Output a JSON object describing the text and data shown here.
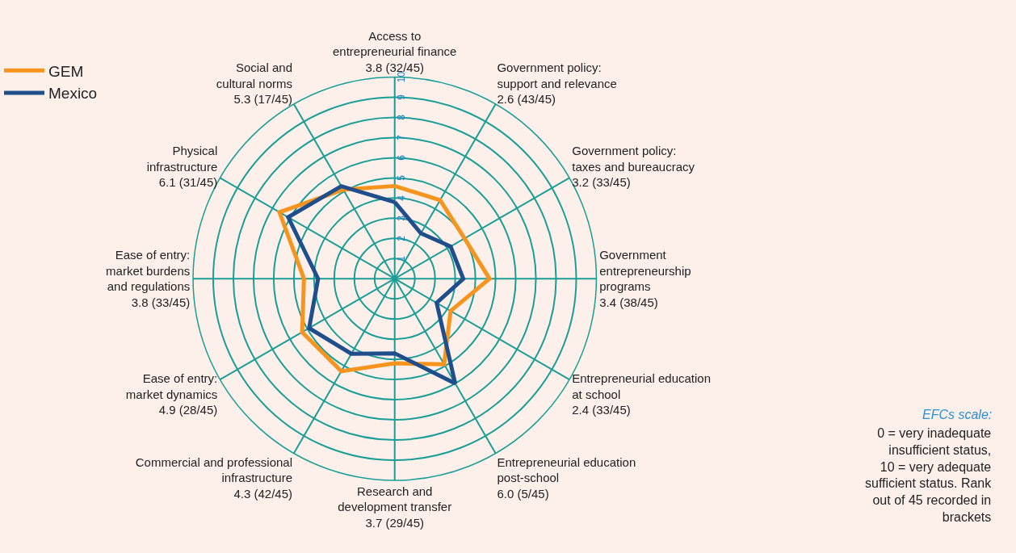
{
  "chart_data": {
    "type": "radar",
    "categories": [
      "Access to\nentrepreneurial finance\n3.8 (32/45)",
      "Government policy:\nsupport and relevance\n2.6 (43/45)",
      "Government policy:\ntaxes and bureaucracy\n3.2 (33/45)",
      "Government\nentrepreneurship\nprograms\n3.4 (38/45)",
      "Entrepreneurial education\nat school\n2.4 (33/45)",
      "Entrepreneurial education\npost-school\n6.0 (5/45)",
      "Research and\ndevelopment transfer\n3.7 (29/45)",
      "Commercial and professional\ninfrastructure\n4.3 (42/45)",
      "Ease of entry:\nmarket dynamics\n4.9 (28/45)",
      "Ease of entry:\nmarket burdens\nand regulations\n3.8 (33/45)",
      "Physical\ninfrastructure\n6.1 (31/45)",
      "Social and\ncultural norms\n5.3 (17/45)"
    ],
    "series": [
      {
        "name": "GEM",
        "color": "#f7941d",
        "values": [
          4.6,
          4.5,
          4.0,
          4.7,
          3.2,
          4.9,
          4.2,
          5.3,
          5.3,
          4.5,
          6.6,
          5.1
        ]
      },
      {
        "name": "Mexico",
        "color": "#1f4e8c",
        "values": [
          3.8,
          2.6,
          3.2,
          3.4,
          2.4,
          6.0,
          3.7,
          4.3,
          4.9,
          3.8,
          6.1,
          5.3
        ]
      }
    ],
    "ylim": [
      0,
      10
    ],
    "yticks": [
      1,
      2,
      3,
      4,
      5,
      6,
      7,
      8,
      9,
      10
    ],
    "grid": true,
    "legend": "top left",
    "marker": "none",
    "line_style": "solid",
    "annotations": [
      "EFCs scale:",
      "0 = very inadequate\ninsufficient status,\n10 = very adequate\nsufficient status. Rank\nout of 45 recorded in\nbrackets"
    ]
  }
}
